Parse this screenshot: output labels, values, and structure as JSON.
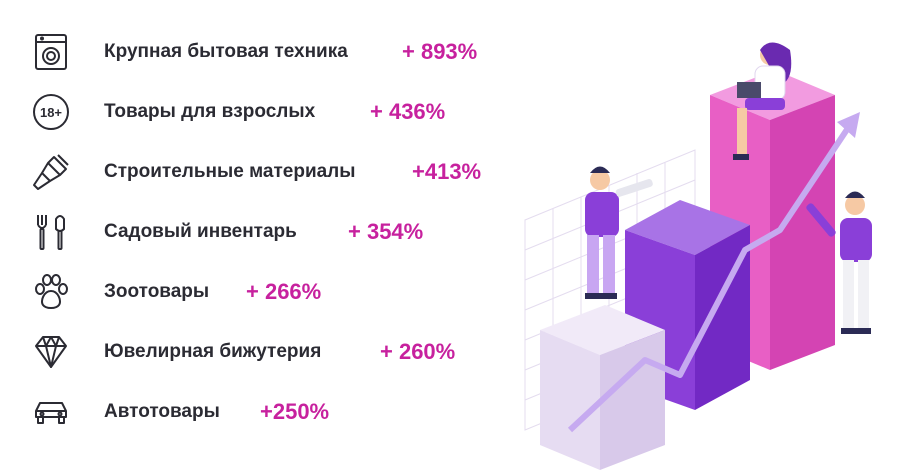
{
  "items": [
    {
      "label": "Крупная бытовая техника",
      "value": "+ 893%",
      "icon": "washing-machine-icon"
    },
    {
      "label": "Товары для взрослых",
      "value": "+ 436%",
      "icon": "18-plus-icon"
    },
    {
      "label": "Строительные материалы",
      "value": "+413%",
      "icon": "paint-brush-icon"
    },
    {
      "label": "Садовый инвентарь",
      "value": "+ 354%",
      "icon": "garden-tools-icon"
    },
    {
      "label": "Зоотовары",
      "value": "+ 266%",
      "icon": "paw-icon"
    },
    {
      "label": "Ювелирная бижутерия",
      "value": "+ 260%",
      "icon": "diamond-icon"
    },
    {
      "label": "Автотовары",
      "value": "+250%",
      "icon": "car-icon"
    }
  ],
  "icon_badge_text": "18+",
  "colors": {
    "accent": "#c7219e",
    "text": "#2b2b33",
    "icon": "#2b2b33",
    "purple": "#8a3fd8",
    "pink": "#e85fc5"
  }
}
